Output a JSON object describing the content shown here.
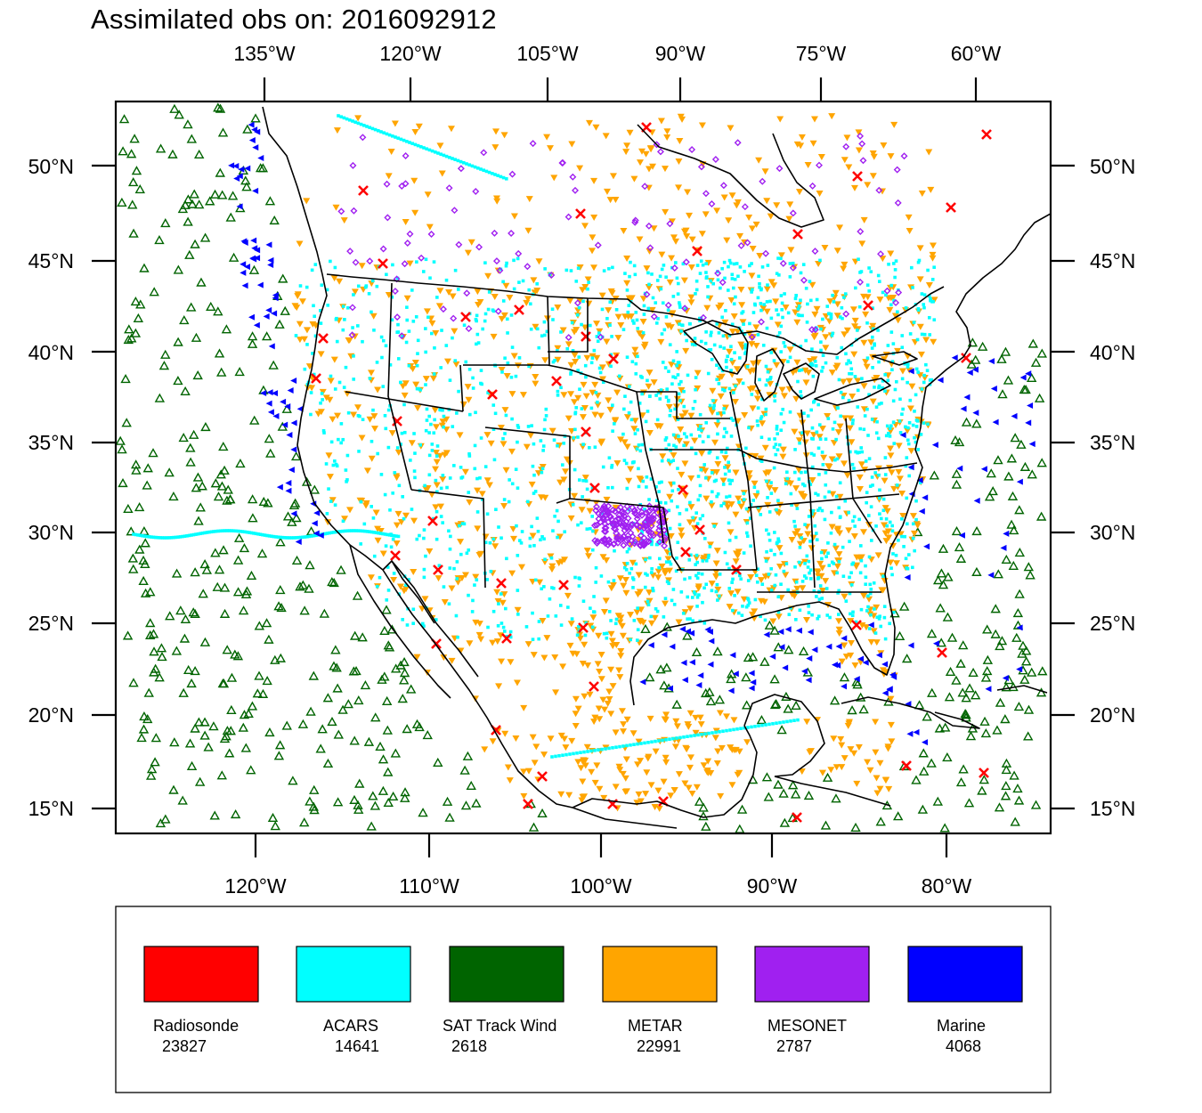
{
  "title": "Assimilated obs on: 2016092912",
  "map": {
    "top_lon_labels": [
      "135°W",
      "120°W",
      "105°W",
      "90°W",
      "75°W",
      "60°W"
    ],
    "bottom_lon_labels": [
      "120°W",
      "110°W",
      "100°W",
      "90°W",
      "80°W"
    ],
    "lat_labels": [
      "50°N",
      "45°N",
      "40°N",
      "35°N",
      "30°N",
      "25°N",
      "20°N",
      "15°N"
    ]
  },
  "legend": [
    {
      "name": "Radiosonde",
      "count": "23827",
      "color": "#ff0000",
      "marker": "x-mark"
    },
    {
      "name": "ACARS",
      "count": "14641",
      "color": "#00ffff",
      "marker": "dot"
    },
    {
      "name": "SAT Track Wind",
      "count": "2618",
      "color": "#006400",
      "marker": "triangle-up"
    },
    {
      "name": "METAR",
      "count": "22991",
      "color": "#ffa500",
      "marker": "triangle-down"
    },
    {
      "name": "MESONET",
      "count": "2787",
      "color": "#a020f0",
      "marker": "diamond"
    },
    {
      "name": "Marine",
      "count": "4068",
      "color": "#0000ff",
      "marker": "triangle-left"
    }
  ]
}
